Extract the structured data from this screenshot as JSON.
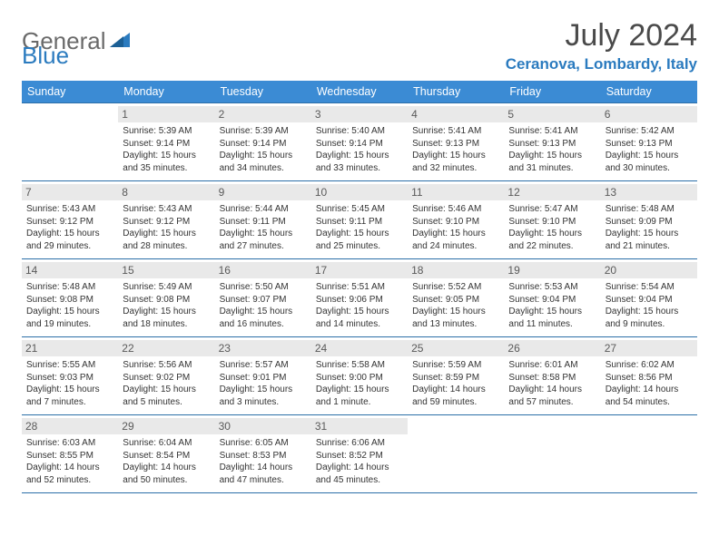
{
  "logo": {
    "text1": "General",
    "text2": "Blue"
  },
  "title": "July 2024",
  "location": "Ceranova, Lombardy, Italy",
  "colors": {
    "header_bg": "#3b8bd4",
    "header_text": "#ffffff",
    "rule": "#2b6fa8",
    "daynum_bg": "#e9e9e9",
    "accent": "#2b7bbf",
    "title_color": "#4a4a4a"
  },
  "dow": [
    "Sunday",
    "Monday",
    "Tuesday",
    "Wednesday",
    "Thursday",
    "Friday",
    "Saturday"
  ],
  "weeks": [
    [
      {
        "n": "",
        "t": ""
      },
      {
        "n": "1",
        "t": "Sunrise: 5:39 AM\nSunset: 9:14 PM\nDaylight: 15 hours and 35 minutes."
      },
      {
        "n": "2",
        "t": "Sunrise: 5:39 AM\nSunset: 9:14 PM\nDaylight: 15 hours and 34 minutes."
      },
      {
        "n": "3",
        "t": "Sunrise: 5:40 AM\nSunset: 9:14 PM\nDaylight: 15 hours and 33 minutes."
      },
      {
        "n": "4",
        "t": "Sunrise: 5:41 AM\nSunset: 9:13 PM\nDaylight: 15 hours and 32 minutes."
      },
      {
        "n": "5",
        "t": "Sunrise: 5:41 AM\nSunset: 9:13 PM\nDaylight: 15 hours and 31 minutes."
      },
      {
        "n": "6",
        "t": "Sunrise: 5:42 AM\nSunset: 9:13 PM\nDaylight: 15 hours and 30 minutes."
      }
    ],
    [
      {
        "n": "7",
        "t": "Sunrise: 5:43 AM\nSunset: 9:12 PM\nDaylight: 15 hours and 29 minutes."
      },
      {
        "n": "8",
        "t": "Sunrise: 5:43 AM\nSunset: 9:12 PM\nDaylight: 15 hours and 28 minutes."
      },
      {
        "n": "9",
        "t": "Sunrise: 5:44 AM\nSunset: 9:11 PM\nDaylight: 15 hours and 27 minutes."
      },
      {
        "n": "10",
        "t": "Sunrise: 5:45 AM\nSunset: 9:11 PM\nDaylight: 15 hours and 25 minutes."
      },
      {
        "n": "11",
        "t": "Sunrise: 5:46 AM\nSunset: 9:10 PM\nDaylight: 15 hours and 24 minutes."
      },
      {
        "n": "12",
        "t": "Sunrise: 5:47 AM\nSunset: 9:10 PM\nDaylight: 15 hours and 22 minutes."
      },
      {
        "n": "13",
        "t": "Sunrise: 5:48 AM\nSunset: 9:09 PM\nDaylight: 15 hours and 21 minutes."
      }
    ],
    [
      {
        "n": "14",
        "t": "Sunrise: 5:48 AM\nSunset: 9:08 PM\nDaylight: 15 hours and 19 minutes."
      },
      {
        "n": "15",
        "t": "Sunrise: 5:49 AM\nSunset: 9:08 PM\nDaylight: 15 hours and 18 minutes."
      },
      {
        "n": "16",
        "t": "Sunrise: 5:50 AM\nSunset: 9:07 PM\nDaylight: 15 hours and 16 minutes."
      },
      {
        "n": "17",
        "t": "Sunrise: 5:51 AM\nSunset: 9:06 PM\nDaylight: 15 hours and 14 minutes."
      },
      {
        "n": "18",
        "t": "Sunrise: 5:52 AM\nSunset: 9:05 PM\nDaylight: 15 hours and 13 minutes."
      },
      {
        "n": "19",
        "t": "Sunrise: 5:53 AM\nSunset: 9:04 PM\nDaylight: 15 hours and 11 minutes."
      },
      {
        "n": "20",
        "t": "Sunrise: 5:54 AM\nSunset: 9:04 PM\nDaylight: 15 hours and 9 minutes."
      }
    ],
    [
      {
        "n": "21",
        "t": "Sunrise: 5:55 AM\nSunset: 9:03 PM\nDaylight: 15 hours and 7 minutes."
      },
      {
        "n": "22",
        "t": "Sunrise: 5:56 AM\nSunset: 9:02 PM\nDaylight: 15 hours and 5 minutes."
      },
      {
        "n": "23",
        "t": "Sunrise: 5:57 AM\nSunset: 9:01 PM\nDaylight: 15 hours and 3 minutes."
      },
      {
        "n": "24",
        "t": "Sunrise: 5:58 AM\nSunset: 9:00 PM\nDaylight: 15 hours and 1 minute."
      },
      {
        "n": "25",
        "t": "Sunrise: 5:59 AM\nSunset: 8:59 PM\nDaylight: 14 hours and 59 minutes."
      },
      {
        "n": "26",
        "t": "Sunrise: 6:01 AM\nSunset: 8:58 PM\nDaylight: 14 hours and 57 minutes."
      },
      {
        "n": "27",
        "t": "Sunrise: 6:02 AM\nSunset: 8:56 PM\nDaylight: 14 hours and 54 minutes."
      }
    ],
    [
      {
        "n": "28",
        "t": "Sunrise: 6:03 AM\nSunset: 8:55 PM\nDaylight: 14 hours and 52 minutes."
      },
      {
        "n": "29",
        "t": "Sunrise: 6:04 AM\nSunset: 8:54 PM\nDaylight: 14 hours and 50 minutes."
      },
      {
        "n": "30",
        "t": "Sunrise: 6:05 AM\nSunset: 8:53 PM\nDaylight: 14 hours and 47 minutes."
      },
      {
        "n": "31",
        "t": "Sunrise: 6:06 AM\nSunset: 8:52 PM\nDaylight: 14 hours and 45 minutes."
      },
      {
        "n": "",
        "t": ""
      },
      {
        "n": "",
        "t": ""
      },
      {
        "n": "",
        "t": ""
      }
    ]
  ]
}
